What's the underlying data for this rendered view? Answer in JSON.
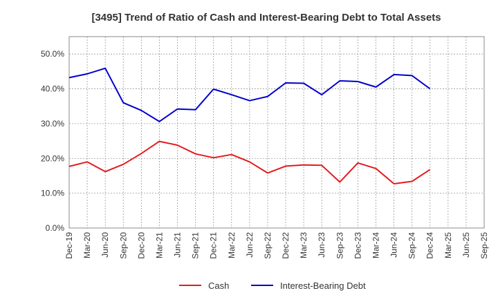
{
  "chart_data": {
    "type": "line",
    "title": "[3495]  Trend of Ratio of Cash and Interest-Bearing Debt to Total Assets",
    "xlabel": "",
    "ylabel": "",
    "x": [
      "Dec-19",
      "Mar-20",
      "Jun-20",
      "Sep-20",
      "Dec-20",
      "Mar-21",
      "Jun-21",
      "Sep-21",
      "Dec-21",
      "Mar-22",
      "Jun-22",
      "Sep-22",
      "Dec-22",
      "Mar-23",
      "Jun-23",
      "Sep-23",
      "Dec-23",
      "Mar-24",
      "Jun-24",
      "Sep-24",
      "Dec-24",
      "Mar-25"
    ],
    "x_tick_labels": [
      "Dec-19",
      "Mar-20",
      "Jun-20",
      "Sep-20",
      "Dec-20",
      "Mar-21",
      "Jun-21",
      "Sep-21",
      "Dec-21",
      "Mar-22",
      "Jun-22",
      "Sep-22",
      "Dec-22",
      "Mar-23",
      "Jun-23",
      "Sep-23",
      "Dec-23",
      "Mar-24",
      "Jun-24",
      "Sep-24",
      "Dec-24",
      "Mar-25",
      "Jun-25",
      "Sep-25"
    ],
    "ylim": [
      0,
      55
    ],
    "y_ticks": [
      0,
      10,
      20,
      30,
      40,
      50
    ],
    "y_tick_labels": [
      "0.0%",
      "10.0%",
      "20.0%",
      "30.0%",
      "40.0%",
      "50.0%"
    ],
    "grid": true,
    "legend_position": "bottom",
    "series": [
      {
        "name": "Cash",
        "color": "#e31a1c",
        "values": [
          17.7,
          19.0,
          16.2,
          18.3,
          21.4,
          24.9,
          23.8,
          21.3,
          20.2,
          21.1,
          19.0,
          15.8,
          17.8,
          18.1,
          18.0,
          13.2,
          18.7,
          17.1,
          12.7,
          13.4,
          16.8,
          null
        ]
      },
      {
        "name": "Interest-Bearing Debt",
        "color": "#0000cc",
        "values": [
          43.2,
          44.3,
          45.9,
          36.0,
          33.8,
          30.6,
          34.2,
          34.0,
          39.9,
          38.3,
          36.6,
          37.8,
          41.7,
          41.6,
          38.3,
          42.3,
          42.1,
          40.5,
          44.1,
          43.8,
          40.0,
          null
        ]
      }
    ]
  }
}
